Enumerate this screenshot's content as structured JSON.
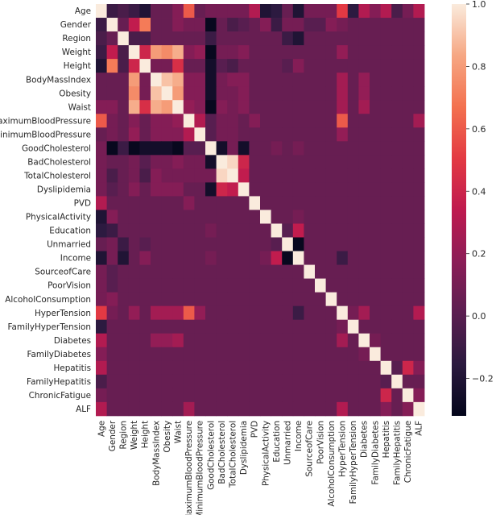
{
  "chart_data": {
    "type": "heatmap",
    "title": "",
    "variables": [
      "Age",
      "Gender",
      "Region",
      "Weight",
      "Height",
      "BodyMassIndex",
      "Obesity",
      "Waist",
      "MaximumBloodPressure",
      "MinimumBloodPressure",
      "GoodCholesterol",
      "BadCholesterol",
      "TotalCholesterol",
      "Dyslipidemia",
      "PVD",
      "PhysicalActivity",
      "Education",
      "Unmarried",
      "Income",
      "SourceofCare",
      "PoorVision",
      "AlcoholConsumption",
      "HyperTension",
      "FamilyHyperTension",
      "Diabetes",
      "FamilyDiabetes",
      "Hepatitis",
      "FamilyHepatitis",
      "ChronicFatigue",
      "ALF"
    ],
    "x_tick_labels": [
      "Age",
      "Gender",
      "Region",
      "Weight",
      "Height",
      "BodyMassIndex",
      "Obesity",
      "Waist",
      "MaximumBloodPressure",
      "MinimumBloodPressure",
      "GoodCholesterol",
      "BadCholesterol",
      "TotalCholesterol",
      "Dyslipidemia",
      "PVD",
      "PhysicalActivity",
      "Education",
      "Unmarried",
      "Income",
      "SourceofCare",
      "PoorVision",
      "AlcoholConsumption",
      "HyperTension",
      "FamilyHyperTension",
      "Diabetes",
      "FamilyDiabetes",
      "Hepatitis",
      "FamilyHepatitis",
      "ChronicFatigue",
      "ALF"
    ],
    "y_tick_labels": [
      "Age",
      "Gender",
      "Region",
      "Weight",
      "Height",
      "BodyMassIndex",
      "Obesity",
      "Waist",
      "MaximumBloodPressure",
      "MinimumBloodPressure",
      "GoodCholesterol",
      "BadCholesterol",
      "TotalCholesterol",
      "Dyslipidemia",
      "PVD",
      "PhysicalActivity",
      "Education",
      "Unmarried",
      "Income",
      "SourceofCare",
      "PoorVision",
      "AlcoholConsumption",
      "HyperTension",
      "FamilyHyperTension",
      "Diabetes",
      "FamilyDiabetes",
      "Hepatitis",
      "FamilyHepatitis",
      "ChronicFatigue",
      "ALF"
    ],
    "default_value": 0.05,
    "diagonal_value": 1.0,
    "values_upper_triangle": [
      [
        0,
        1,
        -0.1
      ],
      [
        0,
        2,
        -0.05
      ],
      [
        0,
        3,
        -0.1
      ],
      [
        0,
        4,
        -0.2
      ],
      [
        0,
        5,
        0.05
      ],
      [
        0,
        6,
        0.05
      ],
      [
        0,
        7,
        0.15
      ],
      [
        0,
        8,
        0.6
      ],
      [
        0,
        9,
        0.05
      ],
      [
        0,
        10,
        0.1
      ],
      [
        0,
        11,
        0.1
      ],
      [
        0,
        12,
        0.1
      ],
      [
        0,
        13,
        0.1
      ],
      [
        0,
        14,
        0.3
      ],
      [
        0,
        15,
        -0.2
      ],
      [
        0,
        16,
        -0.15
      ],
      [
        0,
        17,
        0.05
      ],
      [
        0,
        18,
        -0.2
      ],
      [
        0,
        19,
        0.1
      ],
      [
        0,
        20,
        0.1
      ],
      [
        0,
        21,
        0.1
      ],
      [
        0,
        22,
        0.5
      ],
      [
        0,
        23,
        -0.15
      ],
      [
        0,
        24,
        0.3
      ],
      [
        0,
        25,
        0.15
      ],
      [
        0,
        26,
        0.3
      ],
      [
        0,
        27,
        -0.05
      ],
      [
        0,
        28,
        0.1
      ],
      [
        0,
        29,
        0.3
      ],
      [
        1,
        2,
        0.05
      ],
      [
        1,
        3,
        0.35
      ],
      [
        1,
        4,
        0.7
      ],
      [
        1,
        5,
        0.05
      ],
      [
        1,
        6,
        0.05
      ],
      [
        1,
        7,
        0.15
      ],
      [
        1,
        8,
        0.1
      ],
      [
        1,
        9,
        0.1
      ],
      [
        1,
        10,
        -0.3
      ],
      [
        1,
        11,
        0.05
      ],
      [
        1,
        12,
        -0.05
      ],
      [
        1,
        13,
        0.0
      ],
      [
        1,
        14,
        0.05
      ],
      [
        1,
        15,
        0.15
      ],
      [
        1,
        16,
        -0.1
      ],
      [
        1,
        17,
        0.1
      ],
      [
        1,
        18,
        0.1
      ],
      [
        1,
        19,
        0.0
      ],
      [
        1,
        20,
        0.0
      ],
      [
        1,
        21,
        0.15
      ],
      [
        1,
        22,
        0.1
      ],
      [
        2,
        3,
        -0.05
      ],
      [
        2,
        4,
        -0.05
      ],
      [
        2,
        10,
        -0.1
      ],
      [
        2,
        17,
        -0.1
      ],
      [
        2,
        18,
        -0.2
      ],
      [
        3,
        4,
        0.4
      ],
      [
        3,
        5,
        0.8
      ],
      [
        3,
        6,
        0.75
      ],
      [
        3,
        7,
        0.85
      ],
      [
        3,
        8,
        0.15
      ],
      [
        3,
        9,
        0.2
      ],
      [
        3,
        10,
        -0.3
      ],
      [
        3,
        11,
        0.1
      ],
      [
        3,
        12,
        0.1
      ],
      [
        3,
        13,
        0.15
      ],
      [
        3,
        22,
        0.2
      ],
      [
        4,
        5,
        0.1
      ],
      [
        4,
        6,
        0.1
      ],
      [
        4,
        7,
        0.45
      ],
      [
        4,
        8,
        0.05
      ],
      [
        4,
        10,
        -0.25
      ],
      [
        4,
        11,
        0.0
      ],
      [
        4,
        12,
        -0.05
      ],
      [
        4,
        17,
        0.0
      ],
      [
        4,
        18,
        0.15
      ],
      [
        5,
        6,
        0.9
      ],
      [
        5,
        7,
        0.85
      ],
      [
        5,
        8,
        0.15
      ],
      [
        5,
        9,
        0.15
      ],
      [
        5,
        10,
        -0.25
      ],
      [
        5,
        11,
        0.1
      ],
      [
        5,
        12,
        0.15
      ],
      [
        5,
        13,
        0.15
      ],
      [
        5,
        22,
        0.25
      ],
      [
        5,
        24,
        0.2
      ],
      [
        6,
        7,
        0.8
      ],
      [
        6,
        8,
        0.15
      ],
      [
        6,
        9,
        0.15
      ],
      [
        6,
        10,
        -0.25
      ],
      [
        6,
        11,
        0.1
      ],
      [
        6,
        12,
        0.1
      ],
      [
        6,
        13,
        0.15
      ],
      [
        6,
        22,
        0.25
      ],
      [
        6,
        24,
        0.2
      ],
      [
        7,
        8,
        0.2
      ],
      [
        7,
        9,
        0.15
      ],
      [
        7,
        10,
        -0.3
      ],
      [
        7,
        11,
        0.15
      ],
      [
        7,
        12,
        0.1
      ],
      [
        7,
        13,
        0.15
      ],
      [
        7,
        22,
        0.25
      ],
      [
        7,
        24,
        0.25
      ],
      [
        8,
        9,
        0.3
      ],
      [
        8,
        10,
        0.0
      ],
      [
        8,
        11,
        0.1
      ],
      [
        8,
        12,
        0.1
      ],
      [
        8,
        14,
        0.15
      ],
      [
        8,
        22,
        0.6
      ],
      [
        8,
        29,
        0.25
      ],
      [
        9,
        10,
        0.0
      ],
      [
        9,
        11,
        0.1
      ],
      [
        9,
        12,
        0.1
      ],
      [
        9,
        22,
        0.2
      ],
      [
        10,
        11,
        -0.25
      ],
      [
        10,
        12,
        0.1
      ],
      [
        10,
        13,
        -0.25
      ],
      [
        10,
        16,
        0.1
      ],
      [
        10,
        18,
        0.1
      ],
      [
        11,
        12,
        0.95
      ],
      [
        11,
        13,
        0.4
      ],
      [
        12,
        13,
        0.35
      ],
      [
        15,
        16,
        0.05
      ],
      [
        15,
        18,
        0.1
      ],
      [
        16,
        17,
        0.0
      ],
      [
        16,
        18,
        0.35
      ],
      [
        17,
        18,
        -0.3
      ],
      [
        18,
        19,
        0.05
      ],
      [
        18,
        22,
        -0.1
      ],
      [
        22,
        23,
        0.1
      ],
      [
        22,
        24,
        0.25
      ],
      [
        22,
        29,
        0.3
      ],
      [
        24,
        25,
        0.1
      ],
      [
        26,
        27,
        0.0
      ],
      [
        26,
        28,
        0.4
      ],
      [
        26,
        29,
        0.15
      ],
      [
        28,
        29,
        0.15
      ]
    ],
    "colorbar": {
      "min": -0.32,
      "max": 1.0,
      "ticks": [
        1.0,
        0.8,
        0.6,
        0.4,
        0.2,
        0.0,
        -0.2
      ],
      "tick_labels": [
        "1.0",
        "0.8",
        "0.6",
        "0.4",
        "0.2",
        "0.0",
        "−0.2"
      ]
    },
    "colormap": "rocket"
  }
}
